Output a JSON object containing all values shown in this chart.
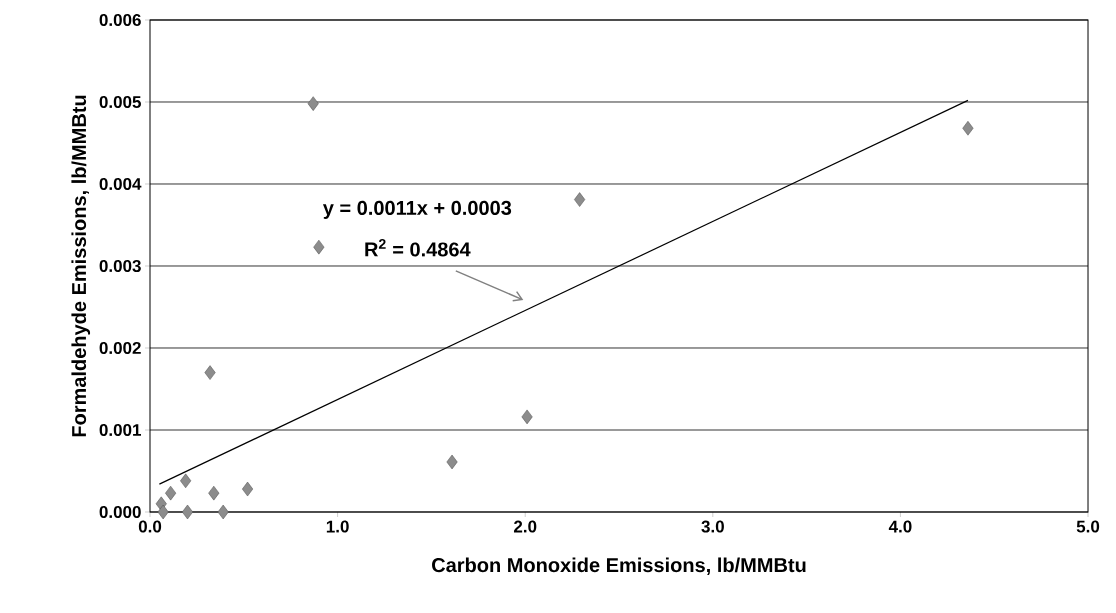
{
  "chart_data": {
    "type": "scatter",
    "xlabel": "Carbon Monoxide Emissions, lb/MMBtu",
    "ylabel": "Formaldehyde Emissions, lb/MMBtu",
    "xlim": [
      0,
      5
    ],
    "ylim": [
      0,
      0.006
    ],
    "xticks": [
      {
        "value": 0,
        "label": "0.0"
      },
      {
        "value": 1,
        "label": "1.0"
      },
      {
        "value": 2,
        "label": "2.0"
      },
      {
        "value": 3,
        "label": "3.0"
      },
      {
        "value": 4,
        "label": "4.0"
      },
      {
        "value": 5,
        "label": "5.0"
      }
    ],
    "yticks": [
      {
        "value": 0,
        "label": "0.000"
      },
      {
        "value": 0.001,
        "label": "0.001"
      },
      {
        "value": 0.002,
        "label": "0.002"
      },
      {
        "value": 0.003,
        "label": "0.003"
      },
      {
        "value": 0.004,
        "label": "0.004"
      },
      {
        "value": 0.005,
        "label": "0.005"
      },
      {
        "value": 0.006,
        "label": "0.006"
      }
    ],
    "grid": "y",
    "series": [
      {
        "marker": "diamond",
        "color": "#8c8c8c",
        "x": [
          0.06,
          0.07,
          0.11,
          0.19,
          0.2,
          0.32,
          0.34,
          0.39,
          0.52,
          0.87,
          0.9,
          1.61,
          2.01,
          2.29,
          4.36
        ],
        "values": [
          0.0001,
          0.0,
          0.00023,
          0.00038,
          0.0,
          0.0017,
          0.00023,
          0.0,
          0.00028,
          0.00498,
          0.00323,
          0.00061,
          0.00116,
          0.00381,
          0.00468
        ]
      },
      {
        "type": "line",
        "marker": "none",
        "line_style": "solid",
        "color": "#000000",
        "x": [
          0.05,
          4.36
        ],
        "values": [
          0.00034,
          0.00502
        ]
      }
    ],
    "annotations": [
      "y = 0.0011x + 0.0003",
      "R$^{2}$ = 0.4864"
    ]
  }
}
